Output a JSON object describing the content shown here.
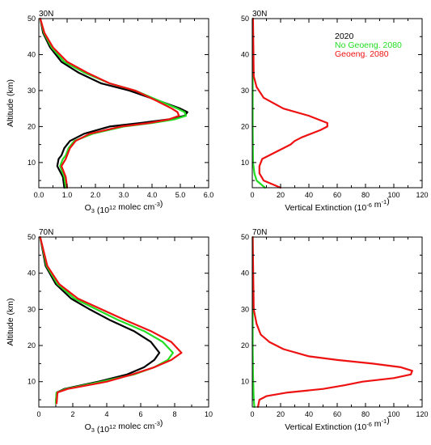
{
  "legend": [
    {
      "label": "2020",
      "color": "#000000"
    },
    {
      "label": "No Geoeng. 2080",
      "color": "#22dd22"
    },
    {
      "label": "Geoeng. 2080",
      "color": "#ee1111"
    }
  ],
  "chart_data": [
    {
      "type": "line",
      "title": "30N",
      "xlabel": "O3 (10^12 molec cm^-3)",
      "ylabel": "Altitude (km)",
      "xlim": [
        0,
        6
      ],
      "ylim": [
        3,
        50
      ],
      "xticks": [
        "0.0",
        "1.0",
        "2.0",
        "3.0",
        "4.0",
        "5.0",
        "6.0"
      ],
      "yticks": [
        "10",
        "20",
        "30",
        "40",
        "50"
      ],
      "series": [
        {
          "name": "2020",
          "color": "#000000",
          "x": [
            0.9,
            0.85,
            0.65,
            0.7,
            0.8,
            0.9,
            1.1,
            1.6,
            2.5,
            3.6,
            4.6,
            5.15,
            5.25,
            5.0,
            4.3,
            3.2,
            2.2,
            1.4,
            0.8,
            0.4,
            0.15,
            0.05
          ],
          "y": [
            3,
            6,
            9,
            11,
            12,
            14,
            16,
            18,
            20,
            21,
            22,
            23,
            24,
            25,
            27,
            30,
            32,
            35,
            38,
            42,
            46,
            50
          ]
        },
        {
          "name": "No Geoeng. 2080",
          "color": "#22dd22",
          "x": [
            0.95,
            0.9,
            0.75,
            0.85,
            0.95,
            1.05,
            1.25,
            1.9,
            3.0,
            4.0,
            4.8,
            5.2,
            5.15,
            4.9,
            4.3,
            3.4,
            2.5,
            1.6,
            0.9,
            0.45,
            0.18,
            0.05
          ],
          "y": [
            3,
            6,
            9,
            11,
            12,
            14,
            16,
            18,
            20,
            21,
            22,
            23,
            24,
            25,
            27,
            30,
            32,
            35,
            38,
            42,
            46,
            50
          ]
        },
        {
          "name": "Geoeng. 2080",
          "color": "#ee1111",
          "x": [
            1.0,
            0.95,
            0.8,
            0.95,
            1.0,
            1.1,
            1.3,
            1.8,
            2.9,
            3.9,
            4.6,
            4.95,
            4.9,
            4.7,
            4.2,
            3.4,
            2.5,
            1.7,
            1.0,
            0.5,
            0.2,
            0.05
          ],
          "y": [
            3,
            6,
            9,
            11,
            12,
            14,
            16,
            18,
            20,
            21,
            22,
            23,
            24,
            25,
            27,
            30,
            32,
            35,
            38,
            42,
            46,
            50
          ]
        }
      ]
    },
    {
      "type": "line",
      "title": "30N",
      "xlabel": "Vertical Extinction (10^-6 m^-1)",
      "ylabel": "",
      "xlim": [
        0,
        120
      ],
      "ylim": [
        3,
        50
      ],
      "xticks": [
        "0",
        "20",
        "40",
        "60",
        "80",
        "100",
        "120"
      ],
      "yticks": [
        "10",
        "20",
        "30",
        "40",
        "50"
      ],
      "series": [
        {
          "name": "No Geoeng. 2080",
          "color": "#22dd22",
          "x": [
            9,
            3,
            1.5,
            0.5,
            0.3,
            0.3,
            0.3
          ],
          "y": [
            3,
            5,
            7,
            10,
            20,
            35,
            50
          ]
        },
        {
          "name": "Geoeng. 2080",
          "color": "#ee1111",
          "x": [
            20,
            8,
            5,
            5,
            7,
            12,
            17,
            22,
            27,
            30,
            35,
            48,
            53,
            53,
            40,
            22,
            8,
            3,
            1,
            0.5
          ],
          "y": [
            3,
            5,
            7,
            9,
            11,
            12,
            13,
            14,
            15,
            16,
            17,
            19,
            20,
            21,
            23,
            25,
            28,
            31,
            34,
            50
          ]
        }
      ]
    },
    {
      "type": "line",
      "title": "70N",
      "xlabel": "O3 (10^12 molec cm^-3)",
      "ylabel": "Altitude (km)",
      "xlim": [
        0,
        10
      ],
      "ylim": [
        3,
        50
      ],
      "xticks": [
        "0",
        "2",
        "4",
        "6",
        "8",
        "10"
      ],
      "yticks": [
        "10",
        "20",
        "30",
        "40",
        "50"
      ],
      "series": [
        {
          "name": "2020",
          "color": "#000000",
          "x": [
            1.0,
            1.05,
            1.5,
            3.5,
            5.2,
            6.2,
            6.8,
            7.1,
            6.6,
            5.6,
            4.2,
            3.0,
            1.9,
            1.0,
            0.4,
            0.08
          ],
          "y": [
            4,
            7,
            8,
            10,
            12,
            14,
            16,
            18,
            21,
            24,
            27,
            30,
            33,
            37,
            42,
            50
          ]
        },
        {
          "name": "No Geoeng. 2080",
          "color": "#22dd22",
          "x": [
            1.0,
            1.05,
            1.6,
            3.7,
            5.6,
            6.8,
            7.6,
            7.9,
            7.3,
            6.2,
            4.7,
            3.4,
            2.1,
            1.1,
            0.45,
            0.08
          ],
          "y": [
            4,
            7,
            8,
            10,
            12,
            14,
            16,
            18,
            21,
            24,
            27,
            30,
            33,
            37,
            42,
            50
          ]
        },
        {
          "name": "Geoeng. 2080",
          "color": "#ee1111",
          "x": [
            1.05,
            1.1,
            1.7,
            4.0,
            5.5,
            6.8,
            7.8,
            8.4,
            7.8,
            6.6,
            5.1,
            3.7,
            2.3,
            1.2,
            0.5,
            0.08
          ],
          "y": [
            4,
            7,
            8,
            10,
            12,
            14,
            16,
            18,
            21,
            24,
            27,
            30,
            33,
            37,
            42,
            50
          ]
        }
      ]
    },
    {
      "type": "line",
      "title": "70N",
      "xlabel": "Vertical Extinction (10^-6 m^-1)",
      "ylabel": "",
      "xlim": [
        0,
        120
      ],
      "ylim": [
        3,
        50
      ],
      "xticks": [
        "0",
        "20",
        "40",
        "60",
        "80",
        "100",
        "120"
      ],
      "yticks": [
        "10",
        "20",
        "30",
        "40",
        "50"
      ],
      "series": [
        {
          "name": "No Geoeng. 2080",
          "color": "#22dd22",
          "x": [
            1.5,
            1,
            0.8,
            0.5,
            0.3,
            0.3
          ],
          "y": [
            3,
            5,
            8,
            12,
            20,
            50
          ]
        },
        {
          "name": "Geoeng. 2080",
          "color": "#ee1111",
          "x": [
            4,
            5,
            10,
            25,
            50,
            65,
            78,
            100,
            112,
            113,
            105,
            85,
            60,
            40,
            22,
            12,
            6,
            3,
            1,
            0.3
          ],
          "y": [
            3,
            5,
            6,
            7,
            8,
            9,
            10,
            11,
            12,
            13,
            14,
            15,
            16,
            17,
            19,
            21,
            23,
            26,
            30,
            50
          ]
        }
      ]
    }
  ]
}
